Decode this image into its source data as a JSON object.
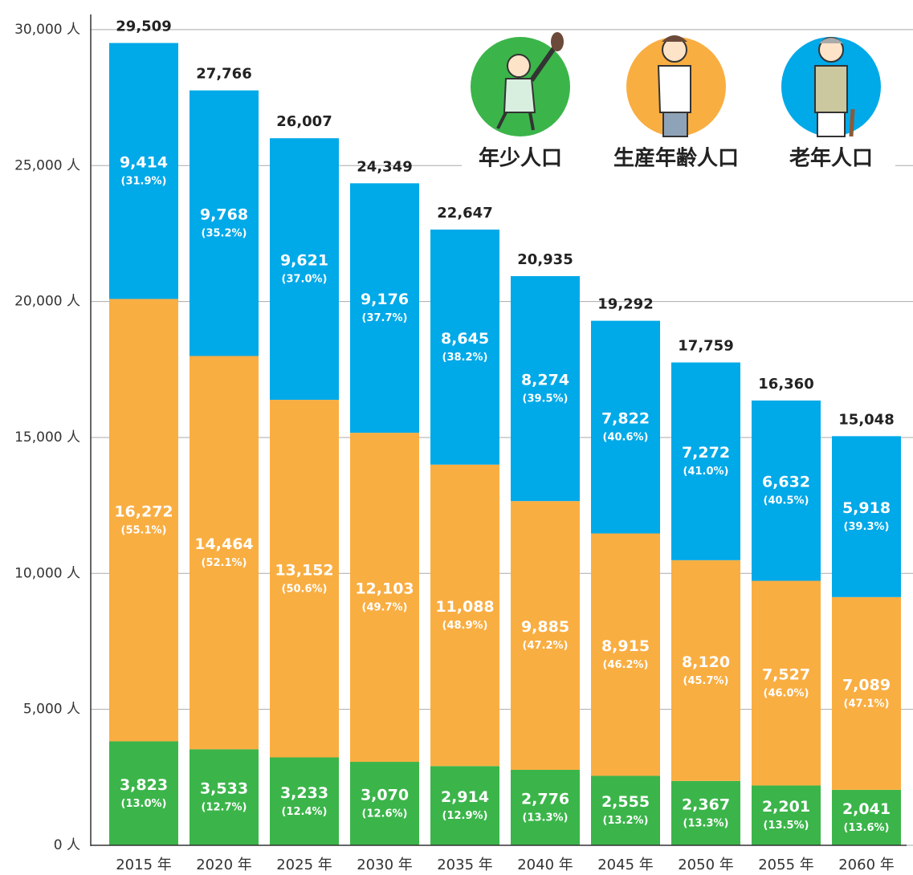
{
  "chart_data": {
    "type": "stacked-bar",
    "categories": [
      "2015 年",
      "2020 年",
      "2025 年",
      "2030 年",
      "2035 年",
      "2040 年",
      "2045 年",
      "2050 年",
      "2055 年",
      "2060 年"
    ],
    "series": [
      {
        "name": "年少人口",
        "color": "#3bb54a",
        "values": [
          3823,
          3533,
          3233,
          3070,
          2914,
          2776,
          2555,
          2367,
          2201,
          2041
        ],
        "value_labels": [
          "3,823",
          "3,533",
          "3,233",
          "3,070",
          "2,914",
          "2,776",
          "2,555",
          "2,367",
          "2,201",
          "2,041"
        ],
        "share_labels": [
          "(13.0%)",
          "(12.7%)",
          "(12.4%)",
          "(12.6%)",
          "(12.9%)",
          "(13.3%)",
          "(13.2%)",
          "(13.3%)",
          "(13.5%)",
          "(13.6%)"
        ]
      },
      {
        "name": "生産年齢人口",
        "color": "#f9ae42",
        "values": [
          16272,
          14464,
          13152,
          12103,
          11088,
          9885,
          8915,
          8120,
          7527,
          7089
        ],
        "value_labels": [
          "16,272",
          "14,464",
          "13,152",
          "12,103",
          "11,088",
          "9,885",
          "8,915",
          "8,120",
          "7,527",
          "7,089"
        ],
        "share_labels": [
          "(55.1%)",
          "(52.1%)",
          "(50.6%)",
          "(49.7%)",
          "(48.9%)",
          "(47.2%)",
          "(46.2%)",
          "(45.7%)",
          "(46.0%)",
          "(47.1%)"
        ]
      },
      {
        "name": "老年人口",
        "color": "#00a9e8",
        "values": [
          9414,
          9768,
          9621,
          9176,
          8645,
          8274,
          7822,
          7272,
          6632,
          5918
        ],
        "value_labels": [
          "9,414",
          "9,768",
          "9,621",
          "9,176",
          "8,645",
          "8,274",
          "7,822",
          "7,272",
          "6,632",
          "5,918"
        ],
        "share_labels": [
          "(31.9%)",
          "(35.2%)",
          "(37.0%)",
          "(37.7%)",
          "(38.2%)",
          "(39.5%)",
          "(40.6%)",
          "(41.0%)",
          "(40.5%)",
          "(39.3%)"
        ]
      }
    ],
    "totals": [
      29509,
      27766,
      26007,
      24349,
      22647,
      20935,
      19292,
      17759,
      16360,
      15048
    ],
    "total_labels": [
      "29,509",
      "27,766",
      "26,007",
      "24,349",
      "22,647",
      "20,935",
      "19,292",
      "17,759",
      "16,360",
      "15,048"
    ],
    "ylim": [
      0,
      30500
    ],
    "yticks": [
      {
        "value": 0,
        "label": "0 人"
      },
      {
        "value": 5000,
        "label": "5,000 人"
      },
      {
        "value": 10000,
        "label": "10,000 人"
      },
      {
        "value": 15000,
        "label": "15,000 人"
      },
      {
        "value": 20000,
        "label": "20,000 人"
      },
      {
        "value": 25000,
        "label": "25,000 人"
      },
      {
        "value": 30000,
        "label": "30,000 人"
      }
    ],
    "grid": true
  }
}
